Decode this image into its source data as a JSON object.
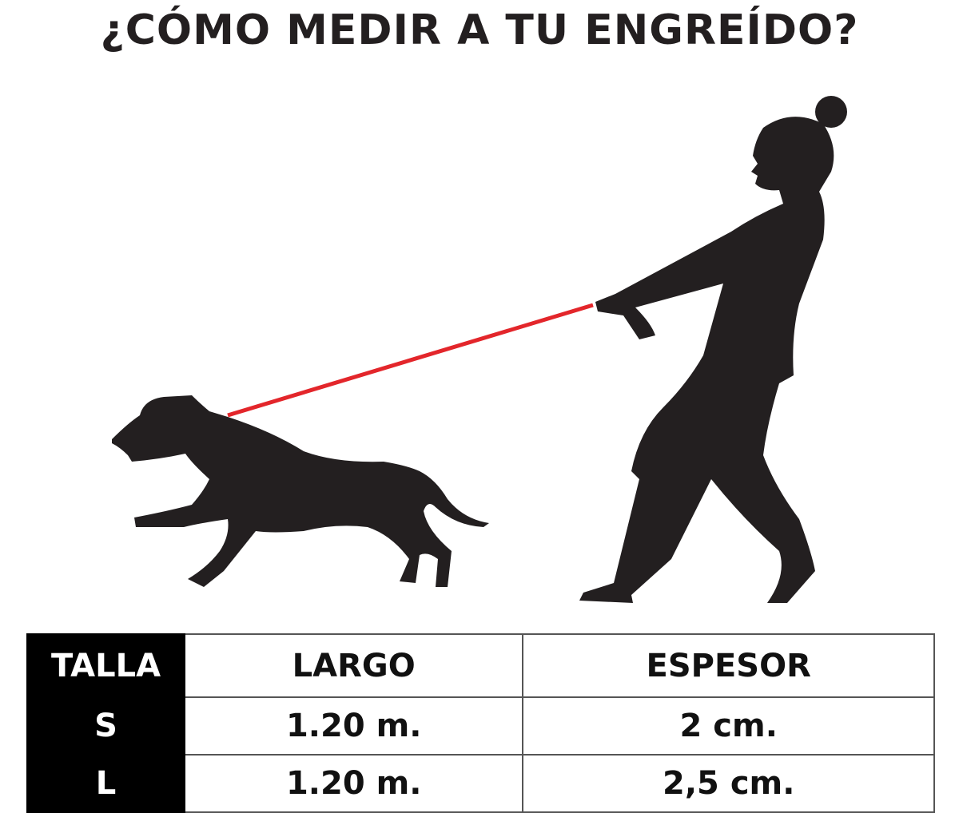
{
  "title": "¿CÓMO MEDIR A TU ENGREÍDO?",
  "colors": {
    "leash": "#e3262b",
    "silhouette": "#231f20"
  },
  "table": {
    "headers": [
      "TALLA",
      "LARGO",
      "ESPESOR"
    ],
    "rows": [
      {
        "talla": "S",
        "largo": "1.20 m.",
        "espesor": "2 cm."
      },
      {
        "talla": "L",
        "largo": "1.20 m.",
        "espesor": "2,5 cm."
      }
    ]
  }
}
